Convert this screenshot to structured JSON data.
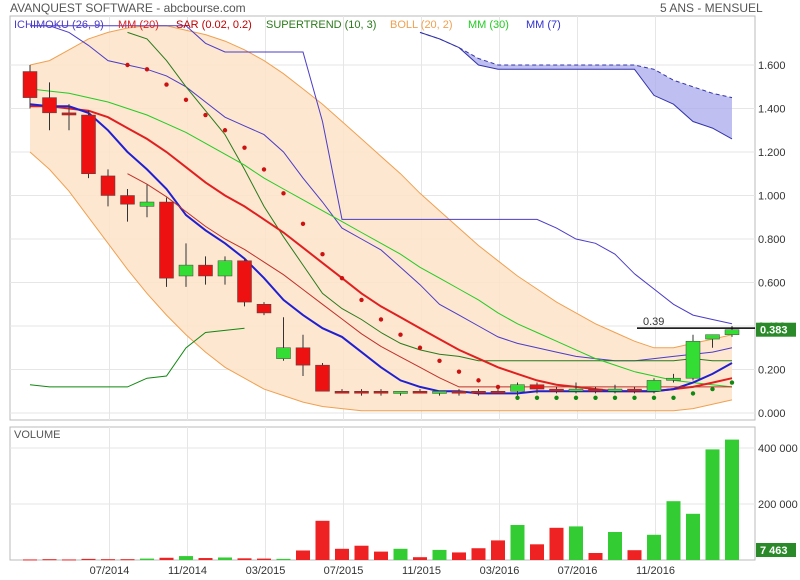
{
  "header": {
    "title": "AVANQUEST SOFTWARE - abcbourse.com",
    "period": "5 ANS - MENSUEL"
  },
  "indicators": [
    {
      "label": "ICHIMOKU (26, 9)",
      "color": "#4b3cc8"
    },
    {
      "label": "MM (20)",
      "color": "#e02020"
    },
    {
      "label": "SAR (0.02, 0.2)",
      "color": "#c00000"
    },
    {
      "label": "SUPERTREND (10, 3)",
      "color": "#2a7a1a"
    },
    {
      "label": "BOLL (20, 2)",
      "color": "#f0a050"
    },
    {
      "label": "MM (30)",
      "color": "#22cc22"
    },
    {
      "label": "MM (7)",
      "color": "#3030d0"
    }
  ],
  "price_axis": {
    "ticks": [
      "1.600",
      "1.400",
      "1.200",
      "1.000",
      "0.800",
      "0.600",
      "0.400",
      "0.200",
      "0.000"
    ]
  },
  "volume_axis": {
    "ticks": [
      "400 000",
      "200 000"
    ]
  },
  "volume_title": "VOLUME",
  "x_axis": {
    "labels": [
      "07/2014",
      "11/2014",
      "03/2015",
      "07/2015",
      "11/2015",
      "03/2016",
      "07/2016",
      "11/2016"
    ]
  },
  "annotation": {
    "label": "0.39",
    "value": 0.39
  },
  "last_price": {
    "label": "0.383",
    "value": 0.383
  },
  "last_volume": {
    "label": "7 463",
    "value": 7463
  },
  "colors": {
    "up": "#33dd33",
    "down": "#ee1111",
    "boll_fill": "#fde3c8",
    "cloud": "#aaaaee",
    "volume_up": "#33cc33",
    "volume_down": "#ee2222"
  },
  "chart_data": {
    "type": "candlestick",
    "title": "AVANQUEST SOFTWARE - abcbourse.com",
    "price_range": [
      0,
      1.8
    ],
    "volume_range": [
      0,
      500000
    ],
    "candles": [
      {
        "o": 1.57,
        "h": 1.6,
        "l": 1.4,
        "c": 1.45,
        "up": false
      },
      {
        "o": 1.45,
        "h": 1.52,
        "l": 1.3,
        "c": 1.38,
        "up": false
      },
      {
        "o": 1.38,
        "h": 1.42,
        "l": 1.3,
        "c": 1.37,
        "up": false
      },
      {
        "o": 1.37,
        "h": 1.39,
        "l": 1.08,
        "c": 1.1,
        "up": false
      },
      {
        "o": 1.09,
        "h": 1.12,
        "l": 0.95,
        "c": 1.0,
        "up": false
      },
      {
        "o": 1.0,
        "h": 1.03,
        "l": 0.88,
        "c": 0.96,
        "up": false
      },
      {
        "o": 0.95,
        "h": 1.05,
        "l": 0.9,
        "c": 0.97,
        "up": true
      },
      {
        "o": 0.97,
        "h": 0.99,
        "l": 0.58,
        "c": 0.62,
        "up": false
      },
      {
        "o": 0.63,
        "h": 0.78,
        "l": 0.58,
        "c": 0.68,
        "up": true
      },
      {
        "o": 0.68,
        "h": 0.72,
        "l": 0.59,
        "c": 0.63,
        "up": false
      },
      {
        "o": 0.63,
        "h": 0.72,
        "l": 0.59,
        "c": 0.7,
        "up": true
      },
      {
        "o": 0.7,
        "h": 0.71,
        "l": 0.49,
        "c": 0.51,
        "up": false
      },
      {
        "o": 0.5,
        "h": 0.51,
        "l": 0.45,
        "c": 0.46,
        "up": false
      },
      {
        "o": 0.25,
        "h": 0.44,
        "l": 0.24,
        "c": 0.3,
        "up": true
      },
      {
        "o": 0.3,
        "h": 0.36,
        "l": 0.17,
        "c": 0.22,
        "up": false
      },
      {
        "o": 0.22,
        "h": 0.23,
        "l": 0.1,
        "c": 0.1,
        "up": false
      },
      {
        "o": 0.1,
        "h": 0.11,
        "l": 0.09,
        "c": 0.1,
        "up": false
      },
      {
        "o": 0.1,
        "h": 0.11,
        "l": 0.08,
        "c": 0.1,
        "up": false
      },
      {
        "o": 0.1,
        "h": 0.11,
        "l": 0.08,
        "c": 0.1,
        "up": false
      },
      {
        "o": 0.09,
        "h": 0.1,
        "l": 0.08,
        "c": 0.1,
        "up": true
      },
      {
        "o": 0.1,
        "h": 0.11,
        "l": 0.09,
        "c": 0.1,
        "up": false
      },
      {
        "o": 0.09,
        "h": 0.1,
        "l": 0.08,
        "c": 0.1,
        "up": true
      },
      {
        "o": 0.1,
        "h": 0.11,
        "l": 0.08,
        "c": 0.1,
        "up": false
      },
      {
        "o": 0.1,
        "h": 0.11,
        "l": 0.08,
        "c": 0.1,
        "up": false
      },
      {
        "o": 0.1,
        "h": 0.11,
        "l": 0.09,
        "c": 0.1,
        "up": false
      },
      {
        "o": 0.1,
        "h": 0.14,
        "l": 0.08,
        "c": 0.13,
        "up": true
      },
      {
        "o": 0.13,
        "h": 0.14,
        "l": 0.09,
        "c": 0.11,
        "up": false
      },
      {
        "o": 0.11,
        "h": 0.12,
        "l": 0.09,
        "c": 0.1,
        "up": false
      },
      {
        "o": 0.1,
        "h": 0.14,
        "l": 0.09,
        "c": 0.11,
        "up": true
      },
      {
        "o": 0.11,
        "h": 0.12,
        "l": 0.09,
        "c": 0.1,
        "up": false
      },
      {
        "o": 0.1,
        "h": 0.13,
        "l": 0.09,
        "c": 0.11,
        "up": true
      },
      {
        "o": 0.11,
        "h": 0.12,
        "l": 0.09,
        "c": 0.1,
        "up": false
      },
      {
        "o": 0.1,
        "h": 0.16,
        "l": 0.09,
        "c": 0.15,
        "up": true
      },
      {
        "o": 0.15,
        "h": 0.18,
        "l": 0.14,
        "c": 0.16,
        "up": true
      },
      {
        "o": 0.16,
        "h": 0.36,
        "l": 0.15,
        "c": 0.33,
        "up": true
      },
      {
        "o": 0.34,
        "h": 0.36,
        "l": 0.3,
        "c": 0.36,
        "up": true
      },
      {
        "o": 0.36,
        "h": 0.4,
        "l": 0.35,
        "c": 0.383,
        "up": true
      }
    ],
    "volumes": [
      2000,
      3000,
      2000,
      4000,
      3000,
      3000,
      5000,
      8000,
      14000,
      7000,
      9000,
      6000,
      5000,
      4000,
      34000,
      140000,
      40000,
      51000,
      30000,
      40000,
      10000,
      36000,
      27000,
      42000,
      70000,
      125000,
      56000,
      115000,
      120000,
      25000,
      100000,
      35000,
      90000,
      210000,
      165000,
      395000,
      430000
    ],
    "mm20": [
      1.41,
      1.41,
      1.4,
      1.39,
      1.36,
      1.31,
      1.26,
      1.2,
      1.13,
      1.06,
      1.0,
      0.95,
      0.89,
      0.83,
      0.76,
      0.69,
      0.62,
      0.55,
      0.49,
      0.44,
      0.39,
      0.34,
      0.29,
      0.25,
      0.21,
      0.18,
      0.15,
      0.13,
      0.12,
      0.11,
      0.1,
      0.1,
      0.1,
      0.11,
      0.12,
      0.14,
      0.16
    ],
    "mm30": [
      1.49,
      1.48,
      1.47,
      1.45,
      1.43,
      1.4,
      1.37,
      1.33,
      1.29,
      1.24,
      1.19,
      1.14,
      1.08,
      1.03,
      0.98,
      0.93,
      0.88,
      0.83,
      0.78,
      0.73,
      0.67,
      0.62,
      0.57,
      0.52,
      0.46,
      0.41,
      0.37,
      0.33,
      0.29,
      0.25,
      0.22,
      0.19,
      0.17,
      0.15,
      0.14,
      0.13,
      0.12
    ],
    "mm7": [
      1.42,
      1.41,
      1.41,
      1.38,
      1.3,
      1.2,
      1.12,
      1.03,
      0.91,
      0.84,
      0.78,
      0.71,
      0.62,
      0.52,
      0.45,
      0.39,
      0.35,
      0.28,
      0.21,
      0.15,
      0.12,
      0.1,
      0.1,
      0.09,
      0.09,
      0.09,
      0.1,
      0.1,
      0.1,
      0.1,
      0.1,
      0.1,
      0.1,
      0.11,
      0.14,
      0.18,
      0.23
    ],
    "boll_upper": [
      1.6,
      1.62,
      1.67,
      1.72,
      1.75,
      1.77,
      1.78,
      1.78,
      1.76,
      1.74,
      1.71,
      1.67,
      1.62,
      1.56,
      1.49,
      1.42,
      1.34,
      1.26,
      1.18,
      1.1,
      1.01,
      0.93,
      0.85,
      0.77,
      0.7,
      0.63,
      0.57,
      0.51,
      0.46,
      0.41,
      0.37,
      0.33,
      0.3,
      0.3,
      0.32,
      0.34,
      0.36
    ],
    "boll_lower": [
      1.2,
      1.12,
      1.02,
      0.9,
      0.78,
      0.66,
      0.55,
      0.45,
      0.36,
      0.28,
      0.21,
      0.16,
      0.11,
      0.08,
      0.05,
      0.03,
      0.02,
      0.01,
      0.01,
      0.01,
      0.01,
      0.01,
      0.01,
      0.01,
      0.01,
      0.01,
      0.01,
      0.01,
      0.01,
      0.01,
      0.01,
      0.01,
      0.01,
      0.01,
      0.02,
      0.04,
      0.06
    ],
    "sar": [
      null,
      null,
      null,
      null,
      null,
      1.6,
      1.58,
      1.51,
      1.44,
      1.37,
      1.3,
      1.22,
      1.12,
      1.01,
      0.87,
      0.73,
      0.62,
      0.52,
      0.43,
      0.36,
      0.3,
      0.24,
      0.19,
      0.15,
      0.12,
      0.07,
      0.07,
      0.07,
      0.07,
      0.07,
      0.07,
      0.07,
      0.07,
      0.07,
      0.09,
      0.11,
      0.14
    ],
    "supertrend": [
      null,
      null,
      null,
      null,
      null,
      1.75,
      1.72,
      1.62,
      1.5,
      1.39,
      1.28,
      1.12,
      0.95,
      0.81,
      0.68,
      0.55,
      0.48,
      0.43,
      0.37,
      0.32,
      0.29,
      0.27,
      0.26,
      0.24,
      0.24,
      0.24,
      0.24,
      0.24,
      0.24,
      0.24,
      0.24,
      0.24,
      0.24,
      0.24,
      0.25,
      0.24,
      0.24
    ],
    "ichimoku_kijun": [
      1.78,
      1.78,
      1.78,
      1.78,
      1.78,
      1.78,
      1.78,
      1.78,
      1.78,
      1.7,
      1.66,
      1.66,
      1.66,
      1.66,
      1.66,
      1.34,
      0.89,
      0.89,
      0.89,
      0.89,
      0.89,
      0.89,
      0.89,
      0.89,
      0.89,
      0.89,
      0.89,
      0.85,
      0.8,
      0.78,
      0.73,
      0.64,
      0.57,
      0.5,
      0.45,
      0.43,
      0.41
    ],
    "ichimoku_tenkan": [
      1.78,
      1.78,
      1.75,
      1.69,
      1.62,
      1.6,
      1.58,
      1.55,
      1.5,
      1.43,
      1.36,
      1.32,
      1.28,
      1.2,
      1.08,
      0.97,
      0.85,
      0.8,
      0.75,
      0.67,
      0.59,
      0.5,
      0.45,
      0.4,
      0.35,
      0.32,
      0.3,
      0.28,
      0.26,
      0.25,
      0.24,
      0.24,
      0.25,
      0.26,
      0.27,
      0.28,
      0.3
    ],
    "cloud_a": [
      null,
      null,
      null,
      null,
      null,
      null,
      null,
      null,
      null,
      null,
      null,
      null,
      null,
      null,
      null,
      null,
      null,
      null,
      null,
      null,
      1.75,
      1.72,
      1.68,
      1.63,
      1.6,
      1.6,
      1.6,
      1.6,
      1.6,
      1.6,
      1.6,
      1.6,
      1.58,
      1.53,
      1.5,
      1.47,
      1.45
    ],
    "cloud_b": [
      null,
      null,
      null,
      null,
      null,
      null,
      null,
      null,
      null,
      null,
      null,
      null,
      null,
      null,
      null,
      null,
      null,
      null,
      null,
      null,
      1.75,
      1.72,
      1.68,
      1.6,
      1.58,
      1.58,
      1.58,
      1.58,
      1.58,
      1.58,
      1.58,
      1.58,
      1.46,
      1.42,
      1.34,
      1.31,
      1.26
    ],
    "chikou": [
      0.13,
      0.12,
      0.12,
      0.12,
      0.12,
      0.12,
      0.16,
      0.17,
      0.3,
      0.37,
      0.38,
      0.39
    ]
  }
}
